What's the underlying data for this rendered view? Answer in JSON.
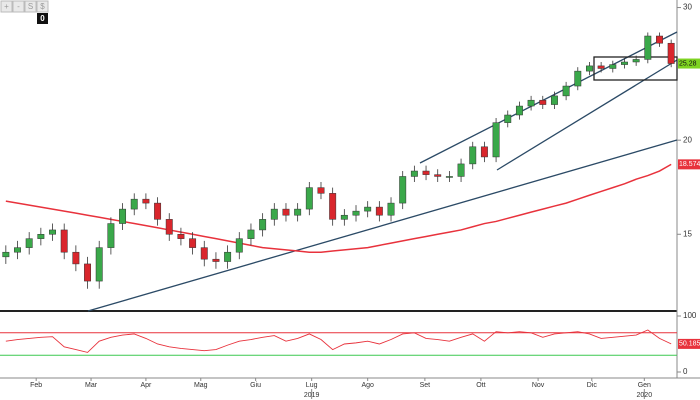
{
  "toolbar": [
    "+",
    "-",
    "S",
    "$"
  ],
  "badge": "0",
  "chart_data": [
    {
      "type": "candlestick",
      "log_scale": true,
      "ylim": [
        11.9,
        30.7
      ],
      "yticks": [
        15,
        20,
        30
      ],
      "xlim": [
        -0.5,
        57.5
      ],
      "up_color": "#3aa84a",
      "down_color": "#d9262c",
      "open": [
        14.0,
        14.2,
        14.4,
        14.8,
        15.0,
        15.2,
        14.2,
        13.7,
        13.0,
        14.4,
        15.5,
        16.2,
        16.7,
        16.5,
        15.7,
        15.0,
        14.8,
        14.4,
        13.9,
        13.8,
        14.2,
        14.8,
        15.2,
        15.7,
        16.2,
        15.9,
        16.2,
        17.3,
        17.0,
        15.7,
        15.9,
        16.1,
        16.3,
        15.9,
        16.5,
        17.9,
        18.2,
        18.0,
        17.9,
        17.9,
        18.6,
        19.6,
        19.0,
        21.1,
        21.6,
        22.2,
        22.6,
        22.3,
        22.9,
        23.6,
        24.7,
        25.1,
        24.9,
        25.2,
        25.4,
        25.6,
        27.5,
        26.9
      ],
      "high": [
        14.5,
        14.7,
        15.1,
        15.3,
        15.5,
        15.5,
        14.5,
        14.0,
        14.7,
        15.8,
        16.5,
        17.0,
        17.0,
        16.8,
        16.0,
        15.3,
        15.1,
        14.7,
        14.2,
        14.5,
        15.1,
        15.5,
        16.0,
        16.5,
        16.5,
        16.5,
        17.6,
        17.6,
        17.3,
        16.2,
        16.4,
        16.6,
        16.6,
        16.8,
        18.2,
        18.5,
        18.5,
        18.3,
        18.2,
        18.9,
        19.9,
        19.9,
        21.4,
        21.9,
        22.5,
        22.9,
        22.9,
        23.2,
        23.9,
        25.0,
        25.4,
        25.4,
        25.5,
        25.7,
        25.9,
        27.8,
        27.8,
        27.2
      ],
      "low": [
        13.7,
        13.9,
        14.1,
        14.5,
        14.7,
        13.9,
        13.4,
        12.7,
        12.7,
        14.1,
        15.2,
        15.9,
        16.2,
        15.4,
        14.7,
        14.5,
        14.1,
        13.6,
        13.5,
        13.5,
        13.9,
        14.5,
        14.9,
        15.4,
        15.6,
        15.6,
        15.9,
        16.7,
        15.4,
        15.4,
        15.6,
        15.8,
        15.6,
        15.6,
        16.2,
        17.6,
        17.7,
        17.6,
        17.6,
        17.6,
        18.3,
        18.7,
        18.7,
        20.8,
        21.3,
        21.9,
        22.0,
        22.0,
        22.6,
        23.3,
        24.4,
        24.6,
        24.6,
        24.9,
        25.1,
        25.3,
        26.6,
        25.0
      ],
      "close": [
        14.2,
        14.4,
        14.8,
        15.0,
        15.2,
        14.2,
        13.7,
        13.0,
        14.4,
        15.5,
        16.2,
        16.7,
        16.5,
        15.7,
        15.0,
        14.8,
        14.4,
        13.9,
        13.8,
        14.2,
        14.8,
        15.2,
        15.7,
        16.2,
        15.9,
        16.2,
        17.3,
        17.0,
        15.7,
        15.9,
        16.1,
        16.3,
        15.9,
        16.5,
        17.9,
        18.2,
        18.0,
        17.9,
        17.9,
        18.6,
        19.6,
        19.0,
        21.1,
        21.6,
        22.2,
        22.6,
        22.3,
        22.9,
        23.6,
        24.7,
        25.1,
        24.9,
        25.2,
        25.4,
        25.6,
        27.5,
        26.9,
        25.28
      ],
      "series": [
        {
          "color": "#e8323c",
          "values": [
            16.6,
            16.5,
            16.4,
            16.3,
            16.2,
            16.1,
            16.0,
            15.9,
            15.8,
            15.7,
            15.6,
            15.5,
            15.4,
            15.3,
            15.2,
            15.1,
            15.0,
            14.9,
            14.8,
            14.7,
            14.6,
            14.5,
            14.4,
            14.35,
            14.3,
            14.25,
            14.2,
            14.2,
            14.25,
            14.3,
            14.35,
            14.4,
            14.5,
            14.6,
            14.7,
            14.8,
            14.9,
            15.0,
            15.1,
            15.2,
            15.35,
            15.5,
            15.6,
            15.75,
            15.9,
            16.05,
            16.2,
            16.35,
            16.5,
            16.7,
            16.9,
            17.1,
            17.3,
            17.5,
            17.75,
            17.95,
            18.2,
            18.5744
          ]
        }
      ]
    },
    {
      "type": "line",
      "ylim": [
        0,
        100
      ],
      "yticks": [
        0,
        100
      ],
      "xlim": [
        -0.5,
        57.5
      ],
      "levels": [
        {
          "value": 70,
          "color": "#e8323c"
        },
        {
          "value": 30,
          "color": "#3cc850"
        }
      ],
      "xticks": [
        {
          "value": 2.6,
          "label": "Feb"
        },
        {
          "value": 7.3,
          "label": "Mar"
        },
        {
          "value": 12,
          "label": "Apr"
        },
        {
          "value": 16.7,
          "label": "Mag"
        },
        {
          "value": 21.4,
          "label": "Giu"
        },
        {
          "value": 26.2,
          "label": "Lug"
        },
        {
          "value": 31,
          "label": "Ago"
        },
        {
          "value": 35.9,
          "label": "Set"
        },
        {
          "value": 40.7,
          "label": "Ott"
        },
        {
          "value": 45.6,
          "label": "Nov"
        },
        {
          "value": 50.2,
          "label": "Dic"
        },
        {
          "value": 54.7,
          "label": "Gen"
        }
      ],
      "year_ticks": [
        {
          "value": 26.2,
          "label": "2019"
        },
        {
          "value": 54.7,
          "label": "2020"
        }
      ],
      "series": [
        {
          "color": "#e8323c",
          "values": [
            55,
            58,
            60,
            62,
            63,
            45,
            40,
            35,
            55,
            62,
            66,
            68,
            60,
            50,
            45,
            42,
            40,
            38,
            40,
            48,
            55,
            58,
            62,
            65,
            55,
            60,
            68,
            58,
            40,
            50,
            52,
            55,
            50,
            58,
            68,
            70,
            60,
            58,
            55,
            62,
            68,
            55,
            72,
            70,
            72,
            70,
            62,
            68,
            70,
            72,
            68,
            60,
            62,
            64,
            66,
            75,
            60,
            50.1856
          ]
        }
      ]
    }
  ]
}
